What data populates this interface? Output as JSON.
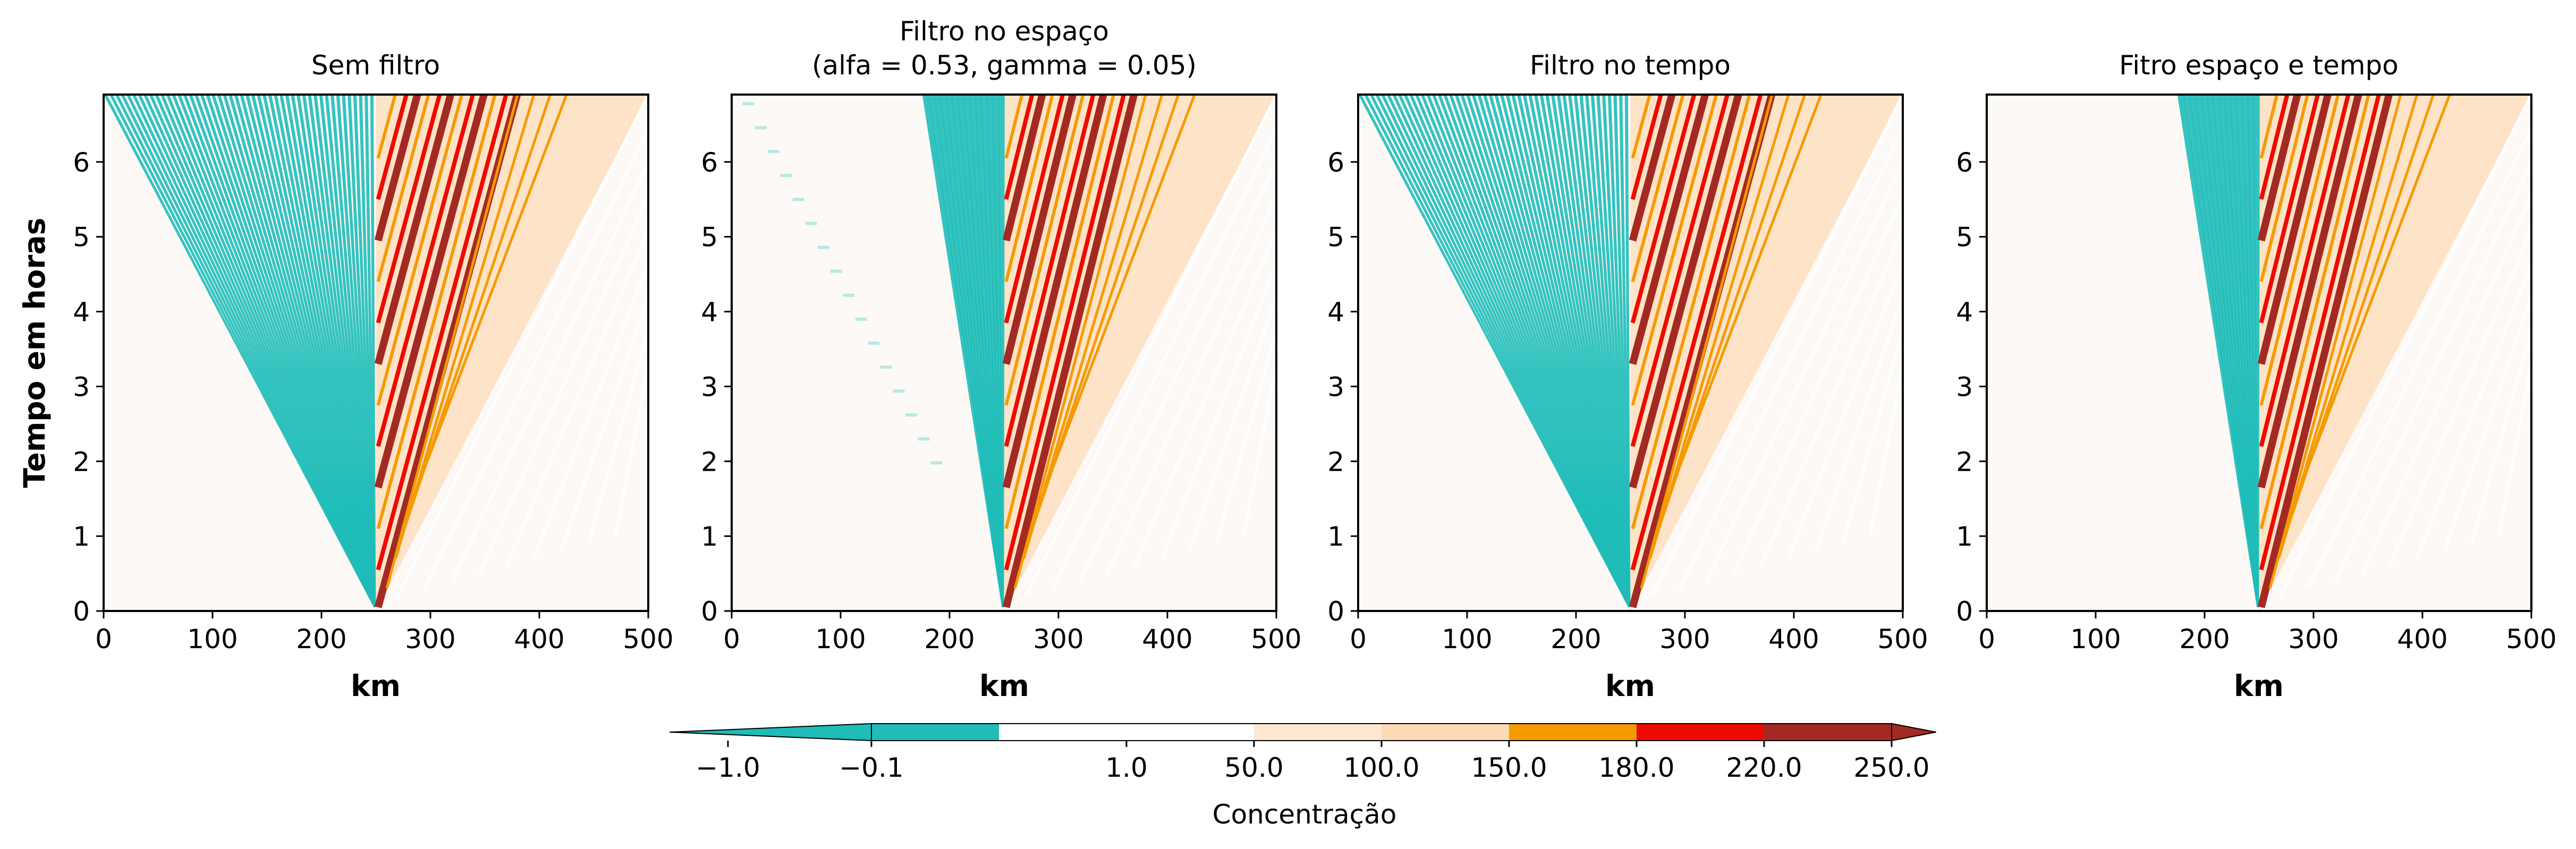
{
  "chart_data": [
    {
      "type": "heatmap",
      "title": "Sem filtro",
      "xlabel": "km",
      "ylabel": "Tempo em horas",
      "xlim": [
        0,
        500
      ],
      "ylim": [
        0,
        6.9
      ],
      "xticks": [
        "0",
        "100",
        "200",
        "300",
        "400",
        "500"
      ],
      "yticks": [
        "0",
        "1",
        "2",
        "3",
        "4",
        "5",
        "6"
      ],
      "source_x_km": 250,
      "wave_front_left_speed_km_per_h": -41.7,
      "wave_front_right_speed_km_per_h": 41.7,
      "spatial_filter": false,
      "time_filter": false
    },
    {
      "type": "heatmap",
      "title": "Filtro no espaço\n(alfa = 0.53, gamma = 0.05)",
      "title_lines": [
        "Filtro no espaço",
        "(alfa = 0.53, gamma = 0.05)"
      ],
      "xlabel": "km",
      "ylabel": "",
      "xlim": [
        0,
        500
      ],
      "ylim": [
        0,
        6.9
      ],
      "xticks": [
        "0",
        "100",
        "200",
        "300",
        "400",
        "500"
      ],
      "yticks": [
        "0",
        "1",
        "2",
        "3",
        "4",
        "5",
        "6"
      ],
      "source_x_km": 250,
      "spatial_filter": true,
      "time_filter": false
    },
    {
      "type": "heatmap",
      "title": "Filtro no tempo",
      "xlabel": "km",
      "ylabel": "",
      "xlim": [
        0,
        500
      ],
      "ylim": [
        0,
        6.9
      ],
      "xticks": [
        "0",
        "100",
        "200",
        "300",
        "400",
        "500"
      ],
      "yticks": [
        "0",
        "1",
        "2",
        "3",
        "4",
        "5",
        "6"
      ],
      "source_x_km": 250,
      "spatial_filter": false,
      "time_filter": true
    },
    {
      "type": "heatmap",
      "title": "Fitro espaço e tempo",
      "xlabel": "km",
      "ylabel": "",
      "xlim": [
        0,
        500
      ],
      "ylim": [
        0,
        6.9
      ],
      "xticks": [
        "0",
        "100",
        "200",
        "300",
        "400",
        "500"
      ],
      "yticks": [
        "0",
        "1",
        "2",
        "3",
        "4",
        "5",
        "6"
      ],
      "source_x_km": 250,
      "spatial_filter": true,
      "time_filter": true
    }
  ],
  "colorbar": {
    "label": "Concentração",
    "ticks": [
      "−1.0",
      "−0.1",
      "1.0",
      "50.0",
      "100.0",
      "150.0",
      "180.0",
      "220.0",
      "250.0"
    ],
    "extend": "both",
    "levels": [
      {
        "from": -1.0,
        "to": -0.1,
        "color": "#1fbcb8"
      },
      {
        "from": -0.1,
        "to": 1.0,
        "color": "#ffffff"
      },
      {
        "from": 1.0,
        "to": 50.0,
        "color": "#ffffff"
      },
      {
        "from": 50.0,
        "to": 100.0,
        "color": "#fde9d3"
      },
      {
        "from": 100.0,
        "to": 150.0,
        "color": "#fdd9b5"
      },
      {
        "from": 150.0,
        "to": 180.0,
        "color": "#f59a00"
      },
      {
        "from": 180.0,
        "to": 220.0,
        "color": "#ee0a00"
      },
      {
        "from": 220.0,
        "to": 250.0,
        "color": "#a32a22"
      }
    ],
    "under_color": "#1fbcb8",
    "over_color": "#a32a22"
  },
  "colors": {
    "background": "#fdf9f7",
    "teal": "#1fbcb8",
    "pale_teal": "#b6e9e6",
    "light_orange": "#fde3c7",
    "orange": "#f59a00",
    "red": "#ee0a00",
    "dark_red": "#a32a22"
  }
}
